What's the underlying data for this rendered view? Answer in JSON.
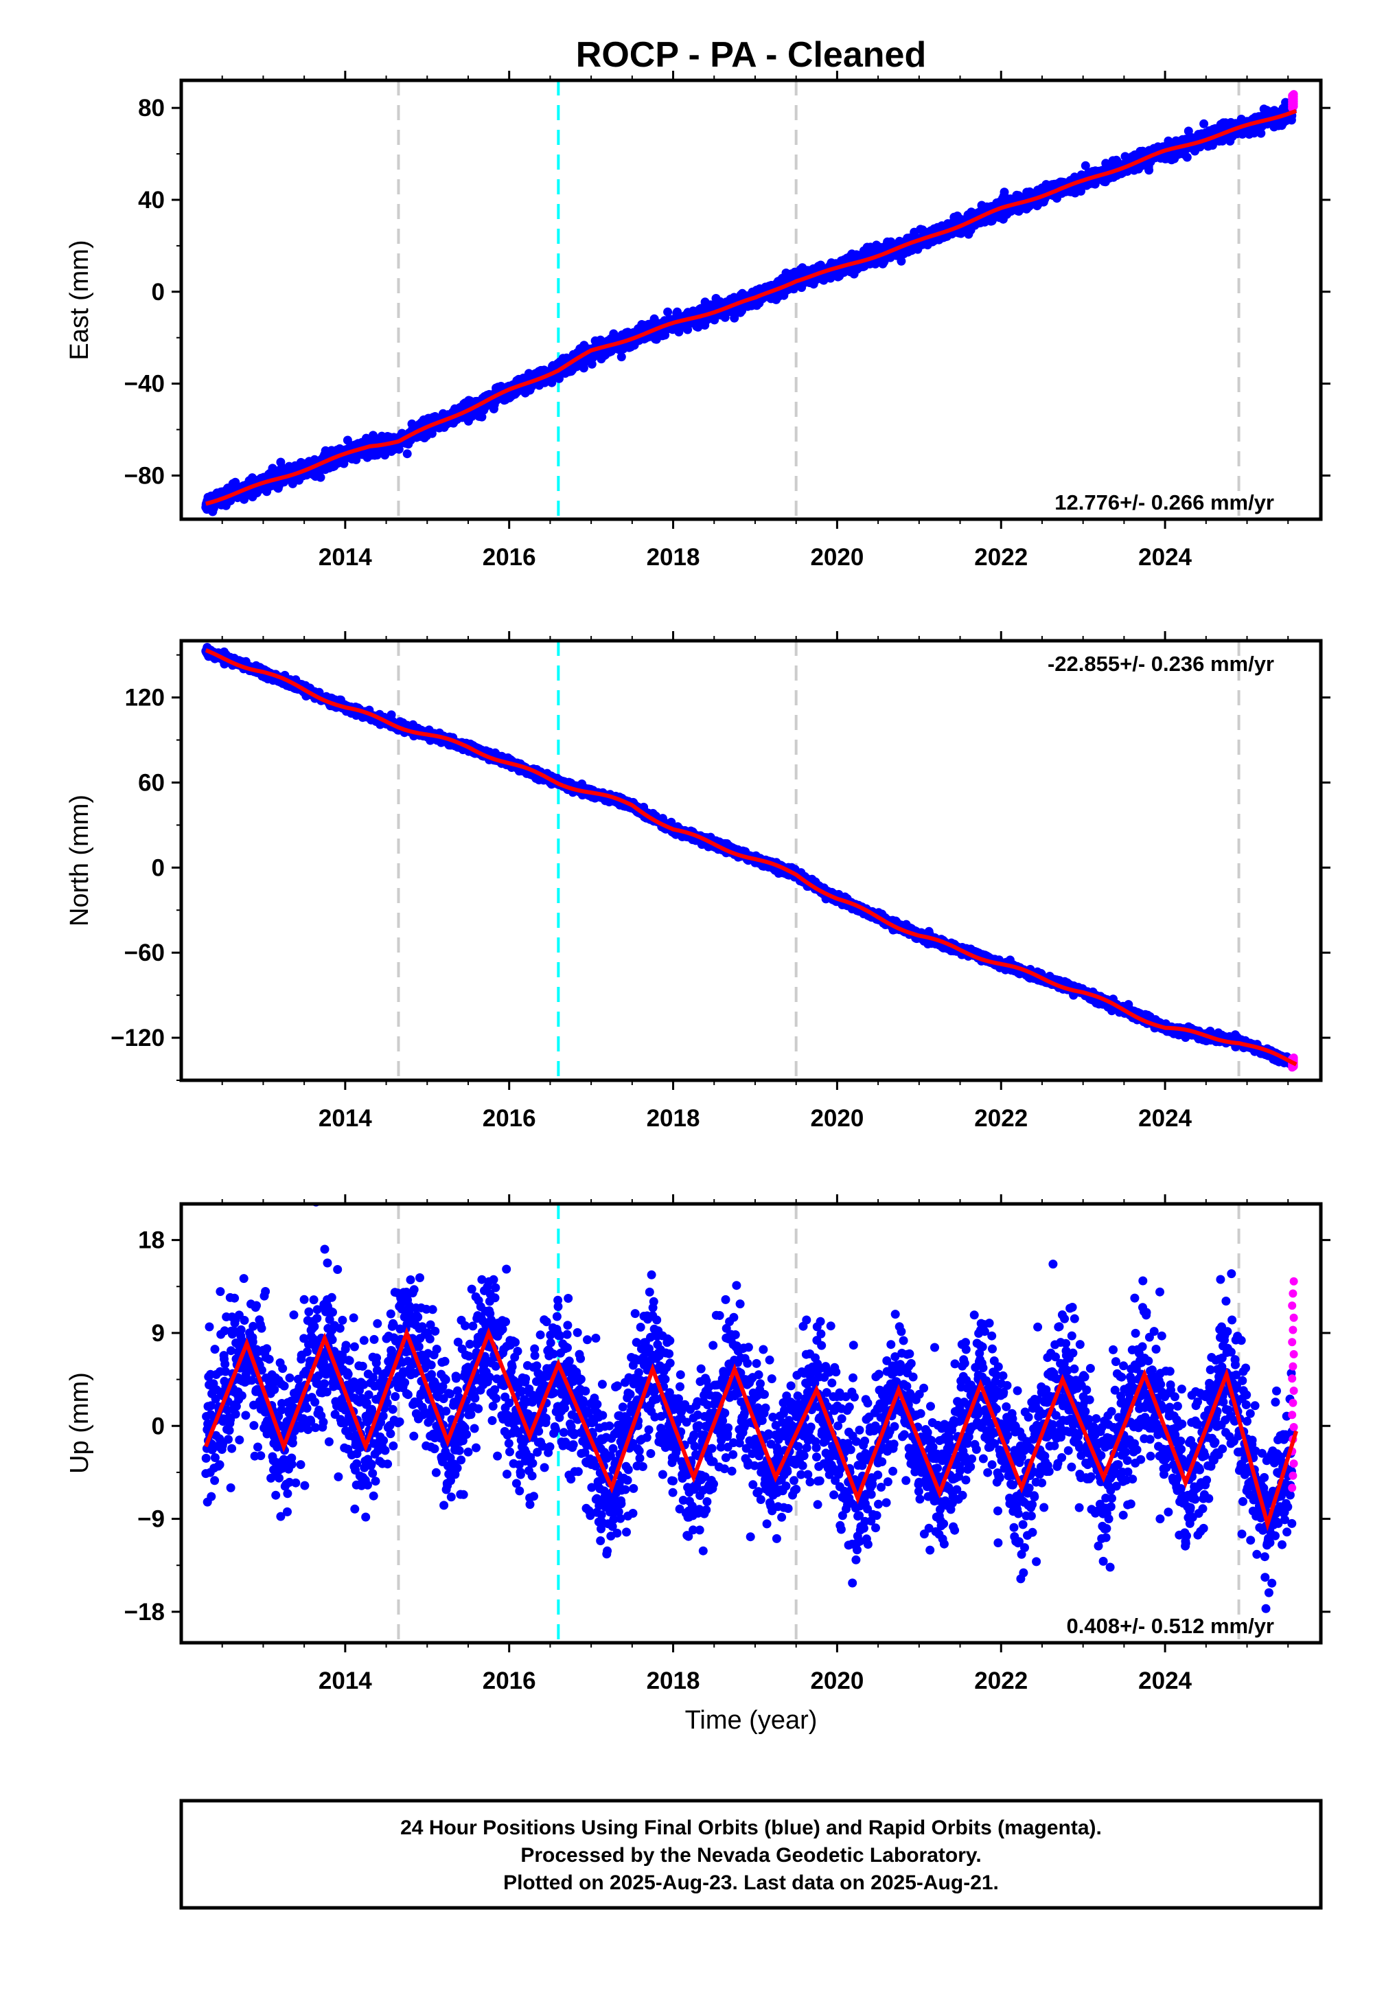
{
  "title": "ROCP  - PA - Cleaned",
  "colors": {
    "final_orbits": "#0000ff",
    "rapid_orbits": "#ff00ff",
    "model_fit": "#ff0000",
    "equipment_change": "#cccccc",
    "event_marker": "#00ffff"
  },
  "chart_data": [
    {
      "type": "scatter",
      "component": "east",
      "ylabel": "East (mm)",
      "xlabel": "",
      "xlim": [
        2012.0,
        2025.9
      ],
      "ylim": [
        -99,
        92
      ],
      "yticks": [
        -80,
        -40,
        0,
        40,
        80
      ],
      "xticks": [
        2014,
        2016,
        2018,
        2020,
        2022,
        2024
      ],
      "rate_label": "12.776+/- 0.266 mm/yr",
      "rate_position": "bottom-right",
      "vlines_gray": [
        2014.65,
        2019.5,
        2024.9
      ],
      "vlines_cyan": [
        2016.6
      ],
      "trend": {
        "start": 2012.3,
        "end": 2025.6,
        "y0": -92.0,
        "rate": 12.776,
        "annual_amp": 1.2,
        "annual_phase": 0.3
      },
      "noise_sd": 1.8,
      "rapid_range": [
        80,
        86
      ],
      "fit_points": [
        [
          2012.3,
          -92
        ],
        [
          2013.3,
          -80
        ],
        [
          2014.3,
          -67
        ],
        [
          2014.65,
          -65
        ],
        [
          2016.0,
          -43
        ],
        [
          2016.6,
          -34
        ],
        [
          2017.0,
          -26
        ],
        [
          2018.0,
          -14
        ],
        [
          2019.0,
          -3
        ],
        [
          2019.5,
          5
        ],
        [
          2020.0,
          10
        ],
        [
          2021.0,
          22
        ],
        [
          2022.0,
          36
        ],
        [
          2023.0,
          48
        ],
        [
          2024.0,
          61
        ],
        [
          2024.9,
          71
        ],
        [
          2025.6,
          79
        ]
      ]
    },
    {
      "type": "scatter",
      "component": "north",
      "ylabel": "North (mm)",
      "xlabel": "",
      "xlim": [
        2012.0,
        2025.9
      ],
      "ylim": [
        -150,
        160
      ],
      "yticks": [
        -120,
        -60,
        0,
        60,
        120
      ],
      "xticks": [
        2014,
        2016,
        2018,
        2020,
        2022,
        2024
      ],
      "rate_label": "-22.855+/- 0.236 mm/yr",
      "rate_position": "top-right",
      "vlines_gray": [
        2014.65,
        2019.5,
        2024.9
      ],
      "vlines_cyan": [
        2016.6
      ],
      "trend": {
        "start": 2012.3,
        "end": 2025.6,
        "y0": 152.0,
        "rate": -22.855,
        "annual_amp": 3.5,
        "annual_phase": 0.0
      },
      "noise_sd": 1.4,
      "rapid_range": [
        -141,
        -134
      ],
      "fit_points": [
        [
          2012.3,
          152
        ],
        [
          2013.0,
          138
        ],
        [
          2014.0,
          113
        ],
        [
          2014.65,
          100
        ],
        [
          2015.5,
          85
        ],
        [
          2016.6,
          60
        ],
        [
          2017.5,
          44
        ],
        [
          2018.0,
          27
        ],
        [
          2019.0,
          6
        ],
        [
          2019.5,
          -5
        ],
        [
          2020.0,
          -22
        ],
        [
          2021.0,
          -48
        ],
        [
          2022.0,
          -68
        ],
        [
          2023.0,
          -88
        ],
        [
          2024.0,
          -113
        ],
        [
          2024.9,
          -123
        ],
        [
          2025.6,
          -138
        ]
      ]
    },
    {
      "type": "scatter",
      "component": "up",
      "ylabel": "Up (mm)",
      "xlabel": "Time (year)",
      "xlim": [
        2012.0,
        2025.9
      ],
      "ylim": [
        -21,
        21.5
      ],
      "yticks": [
        -18,
        -9,
        0,
        9,
        18
      ],
      "xticks": [
        2014,
        2016,
        2018,
        2020,
        2022,
        2024
      ],
      "rate_label": "0.408+/- 0.512 mm/yr",
      "rate_position": "bottom-right",
      "vlines_gray": [
        2014.65,
        2019.5,
        2024.9
      ],
      "vlines_cyan": [
        2016.6
      ],
      "trend": {
        "start": 2012.3,
        "end": 2025.6,
        "y0": 2.0,
        "rate": 0.408,
        "annual_amp": 6.5,
        "annual_phase": 0.55
      },
      "noise_sd": 3.6,
      "rapid_range": [
        -6,
        14
      ],
      "fit_points": [
        [
          2012.3,
          -2
        ],
        [
          2012.8,
          8
        ],
        [
          2013.25,
          -2
        ],
        [
          2013.75,
          8.5
        ],
        [
          2014.25,
          -2
        ],
        [
          2014.75,
          9
        ],
        [
          2015.25,
          -1.5
        ],
        [
          2015.75,
          9
        ],
        [
          2016.25,
          -1
        ],
        [
          2016.6,
          6
        ],
        [
          2017.25,
          -6
        ],
        [
          2017.75,
          5.5
        ],
        [
          2018.25,
          -5
        ],
        [
          2018.75,
          5.5
        ],
        [
          2019.25,
          -5
        ],
        [
          2019.75,
          3.5
        ],
        [
          2020.25,
          -7
        ],
        [
          2020.75,
          3.5
        ],
        [
          2021.25,
          -6.5
        ],
        [
          2021.75,
          4
        ],
        [
          2022.25,
          -6
        ],
        [
          2022.75,
          4.5
        ],
        [
          2023.25,
          -5
        ],
        [
          2023.75,
          5
        ],
        [
          2024.25,
          -5.5
        ],
        [
          2024.75,
          5
        ],
        [
          2025.25,
          -9.5
        ],
        [
          2025.6,
          -0.5
        ]
      ]
    }
  ],
  "footer": {
    "line1": "24 Hour Positions Using Final Orbits (blue) and Rapid Orbits (magenta).",
    "line2": "Processed by the Nevada Geodetic Laboratory.",
    "line3": "Plotted on 2025-Aug-23. Last data on 2025-Aug-21."
  }
}
